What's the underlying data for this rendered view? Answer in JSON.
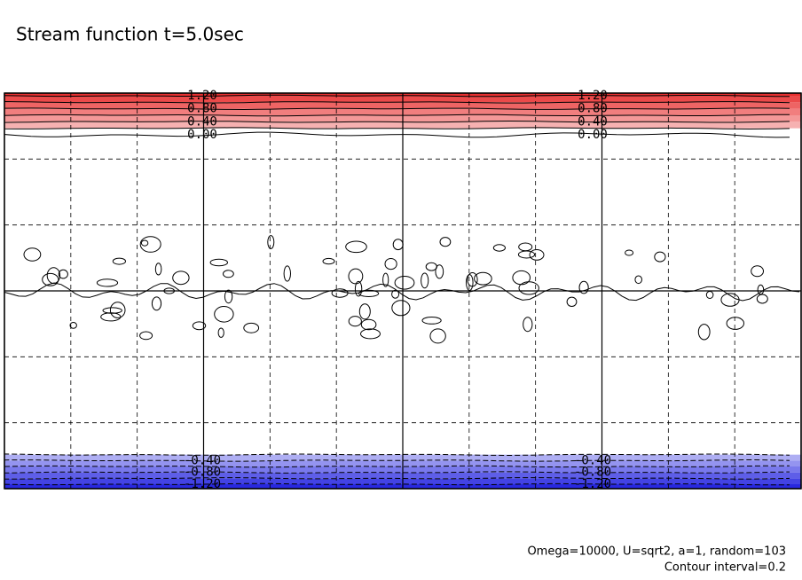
{
  "chart_data": {
    "type": "contour",
    "title": "Stream function t=5.0sec",
    "annotations": [
      "Omega=10000, U=sqrt2, a=1, random=103",
      "Contour interval=0.2"
    ],
    "levels": [
      -1.2,
      -1.0,
      -0.8,
      -0.6,
      -0.4,
      -0.2,
      0.0,
      0.2,
      0.4,
      0.6,
      0.8,
      1.0,
      1.2
    ],
    "contour_labels": [
      {
        "value": 1.2,
        "label": "1.20"
      },
      {
        "value": 0.8,
        "label": "0.80"
      },
      {
        "value": 0.4,
        "label": "0.40"
      },
      {
        "value": 0.0,
        "label": "0.00"
      },
      {
        "value": -0.4,
        "label": "-0.40"
      },
      {
        "value": -0.8,
        "label": "-0.80"
      },
      {
        "value": -1.2,
        "label": "-1.20"
      }
    ],
    "positive_color": "#e83030",
    "negative_color": "#2828e0",
    "grid": true
  }
}
